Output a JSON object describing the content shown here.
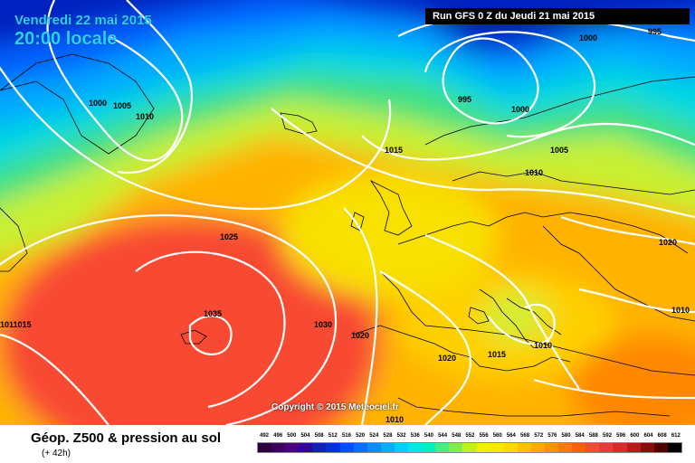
{
  "header": {
    "date": "Vendredi 22 mai 2015",
    "time": "20:00 locale",
    "run": "Run GFS 0 Z du Jeudi 21 mai 2015"
  },
  "map": {
    "copyright": "Copyright © 2015 Meteociel.fr",
    "isobar_labels": [
      "995",
      "1000",
      "995",
      "1000",
      "1000",
      "1005",
      "1010",
      "1015",
      "1005",
      "1010",
      "1025",
      "1020",
      "1035",
      "1030",
      "1020",
      "1020",
      "1015",
      "1010",
      "1010",
      "1011015",
      "1010"
    ]
  },
  "footer": {
    "title": "Géop. Z500 & pression au sol",
    "subtitle": "(+ 42h)",
    "scale_labels": [
      "492",
      "496",
      "500",
      "504",
      "508",
      "512",
      "516",
      "520",
      "524",
      "528",
      "532",
      "536",
      "540",
      "544",
      "548",
      "552",
      "556",
      "560",
      "564",
      "568",
      "572",
      "576",
      "580",
      "584",
      "588",
      "592",
      "596",
      "600",
      "604",
      "608",
      "612"
    ],
    "scale_colors": [
      "#2a0040",
      "#3b0060",
      "#4a0080",
      "#3000a0",
      "#1020c0",
      "#0030e0",
      "#0050ff",
      "#0070ff",
      "#0090ff",
      "#00b0ff",
      "#00d0ff",
      "#00e8e8",
      "#00f0c0",
      "#40f080",
      "#80f040",
      "#c0f020",
      "#f0f000",
      "#f8e800",
      "#ffd800",
      "#ffc000",
      "#ffa800",
      "#ff9000",
      "#ff7800",
      "#ff6000",
      "#f84830",
      "#f03838",
      "#e02828",
      "#c01818",
      "#900808",
      "#500000",
      "#000000"
    ]
  }
}
